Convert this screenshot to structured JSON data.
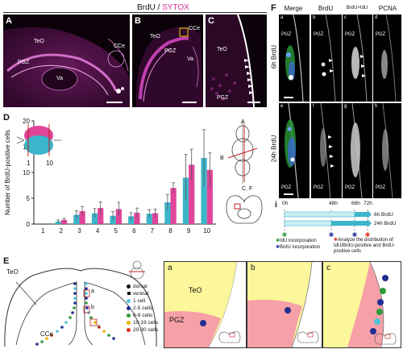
{
  "header": {
    "left": "BrdU",
    "sep": " / ",
    "right": "SYTOX"
  },
  "panelA": {
    "label": "A",
    "teo": "TeO",
    "cce": "CCe",
    "pgz": "PGZ",
    "va": "Va"
  },
  "panelB": {
    "label": "B",
    "teo": "TeO",
    "cce": "CCe",
    "pgz": "PGZ",
    "va": "Va"
  },
  "panelC": {
    "label": "C",
    "teo": "TeO",
    "pgz": "PGZ"
  },
  "panelD": {
    "label": "D",
    "schematic_left": "1",
    "schematic_right": "10",
    "schematic_A": "A",
    "schematic_B": "B",
    "schematic_CF": "C, F"
  },
  "panelE": {
    "label": "E",
    "teo": "TeO",
    "cce": "CCe",
    "mark_a": "a",
    "mark_b": "b",
    "mark_c": "c",
    "legend": [
      {
        "label": "dorsal",
        "color": "#111111",
        "shape": "dot"
      },
      {
        "label": "ventral",
        "color": "#111111",
        "shape": "sq"
      },
      {
        "label": "1 cell",
        "color": "#4fc3d9",
        "shape": "dot"
      },
      {
        "label": "2-5 cells",
        "color": "#1f2f8f",
        "shape": "dot"
      },
      {
        "label": "6-9 cells",
        "color": "#2e9b3a",
        "shape": "dot"
      },
      {
        "label": "10-19 cells",
        "color": "#f0b400",
        "shape": "dot"
      },
      {
        "label": "20-30 cells",
        "color": "#e0301e",
        "shape": "dot"
      }
    ],
    "sub": [
      {
        "label": "a",
        "teo": "TeO",
        "pgz": "PGZ"
      },
      {
        "label": "b"
      },
      {
        "label": "c"
      }
    ]
  },
  "panelF": {
    "label": "F",
    "columns": [
      "Merge",
      "BrdU",
      "BrdU+IdU",
      "PCNA"
    ],
    "row1_label": "6h BrdU",
    "row2_label": "24h BrdU",
    "row1_sub": [
      "a",
      "b",
      "c",
      "d"
    ],
    "row2_sub": [
      "e",
      "f",
      "g",
      "h"
    ],
    "pgz": "PGZ"
  },
  "panelI": {
    "label": "i",
    "t0": "0h",
    "t48": "48h",
    "t66": "66h",
    "t72": "72h",
    "bar1": "6h BrdU",
    "bar2": "24h BrdU",
    "note_idu": "IdU incorporation",
    "note_brdu": "BrdU incorporation",
    "note_analyze": "Analyze the distribution of IdU/BrdU-positive and BrdU-positive cells"
  },
  "colors": {
    "magenta": "#e0459a",
    "cyan": "#3bb5c9",
    "pink_region": "#f6a0a8",
    "yellow_region": "#fbf79a"
  },
  "chart_data": {
    "type": "bar",
    "ylabel": "Number of BrdU-positive cells",
    "categories": [
      "1",
      "2",
      "3",
      "4",
      "5",
      "6",
      "7",
      "8",
      "9",
      "10"
    ],
    "ylim": [
      0,
      20
    ],
    "yticks": [
      0,
      5,
      10,
      15,
      20
    ],
    "series": [
      {
        "color": "#3bb5c9",
        "values": [
          0,
          0.5,
          1.8,
          2.1,
          1.6,
          1.5,
          2.0,
          4.2,
          9.0,
          12.8
        ],
        "errors": [
          0,
          0.3,
          0.8,
          0.9,
          0.8,
          0.7,
          0.8,
          1.5,
          4.5,
          5.5
        ]
      },
      {
        "color": "#e0459a",
        "values": [
          0,
          0.8,
          2.5,
          3.1,
          2.9,
          2.2,
          2.1,
          7.0,
          11.5,
          10.5
        ],
        "errors": [
          0,
          0.3,
          0.9,
          1.2,
          1.3,
          0.9,
          0.8,
          1.0,
          3.0,
          3.3
        ]
      }
    ]
  }
}
